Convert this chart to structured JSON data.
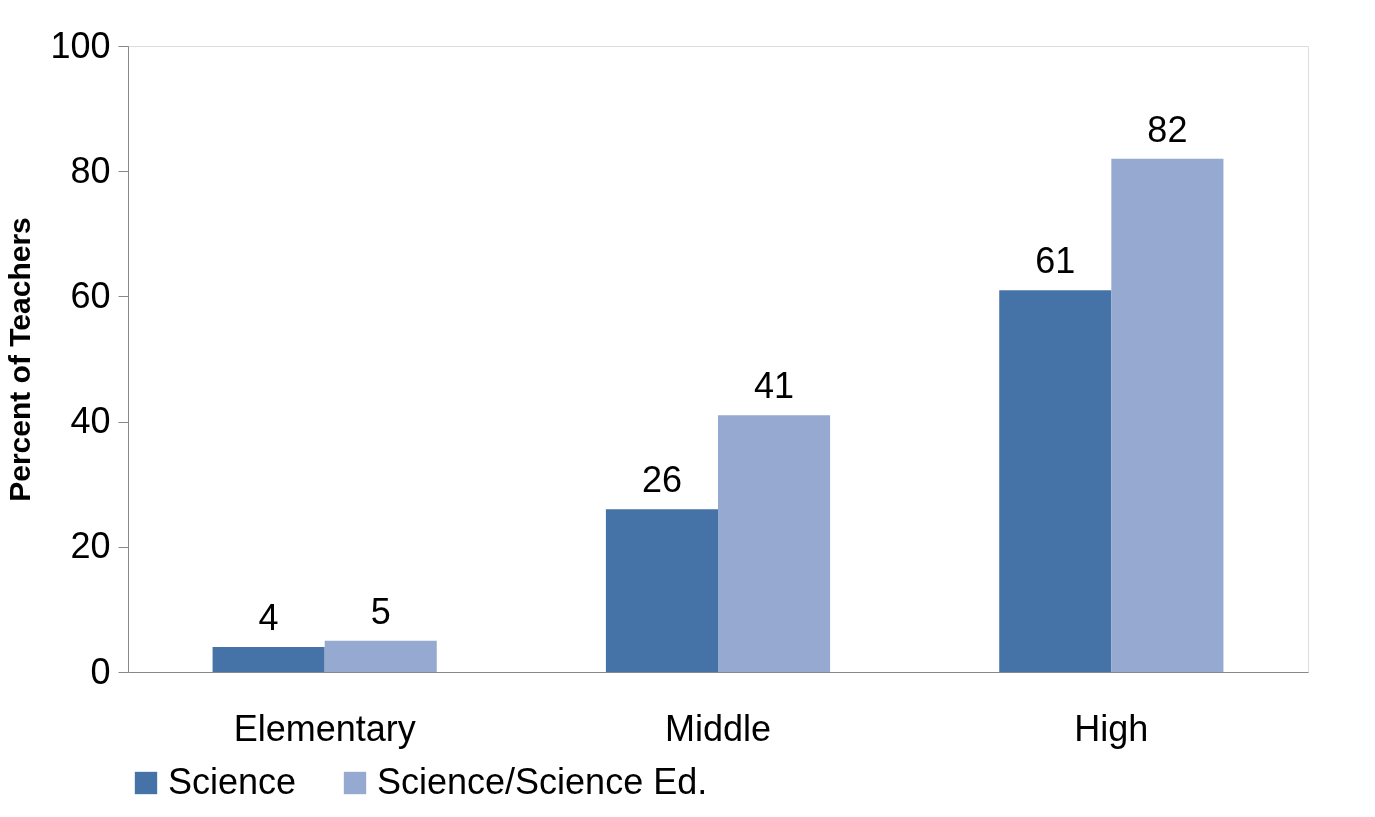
{
  "chart_data": {
    "type": "bar",
    "ylabel": "Percent of Teachers",
    "categories": [
      "Elementary",
      "Middle",
      "High"
    ],
    "series": [
      {
        "name": "Science",
        "color": "#4573a7",
        "values": [
          4,
          26,
          61
        ]
      },
      {
        "name": "Science/Science Ed.",
        "color": "#95a9d1",
        "values": [
          5,
          41,
          82
        ]
      }
    ],
    "ylim": [
      0,
      100
    ],
    "yticks": [
      0,
      20,
      40,
      60,
      80,
      100
    ],
    "grid": false,
    "legend": "bottom",
    "data_labels": true
  }
}
